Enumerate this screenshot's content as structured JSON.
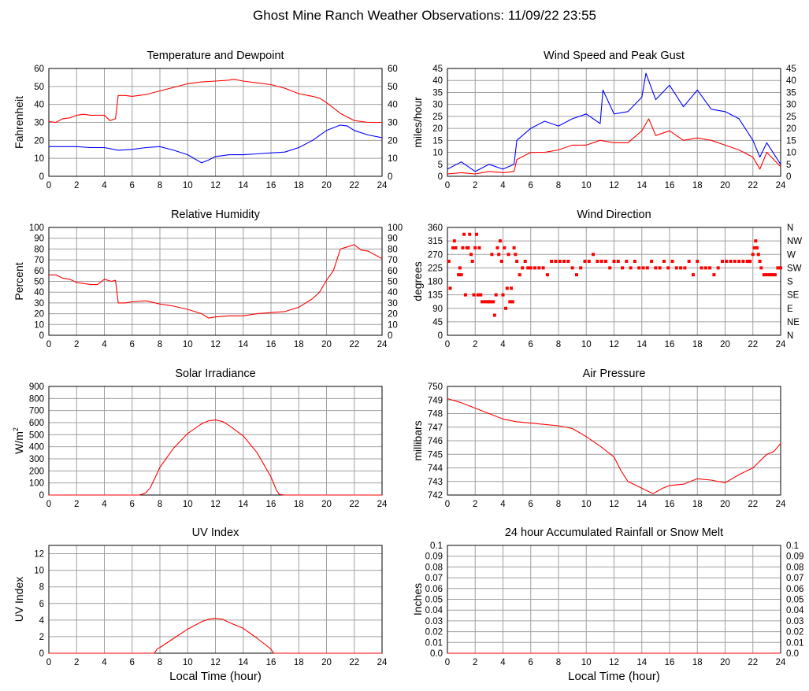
{
  "page_title": "Ghost Mine Ranch Weather Observations: 11/09/22 23:55",
  "colors": {
    "grid": "#a0a0a0",
    "series_red": "#ff0000",
    "series_blue": "#0000ff",
    "axis": "#000000"
  },
  "chart_data": [
    {
      "id": "temperature",
      "type": "line",
      "title": "Temperature and Dewpoint",
      "ylabel": "Fahrenheit",
      "xlabel": "",
      "xlim": [
        0,
        24
      ],
      "ylim": [
        0,
        60
      ],
      "yticks": [
        0,
        10,
        20,
        30,
        40,
        50,
        60
      ],
      "right_axis": true,
      "series": [
        {
          "name": "Temperature",
          "color": "#ff0000",
          "x": [
            0,
            0.5,
            1,
            1.5,
            2,
            2.5,
            3,
            3.5,
            4,
            4.4,
            4.8,
            5.0,
            5.5,
            6,
            7,
            8,
            9,
            10,
            11,
            12,
            13,
            13.3,
            14,
            15,
            16,
            17,
            18,
            19,
            19.5,
            20,
            20.5,
            21,
            22,
            23,
            24
          ],
          "y": [
            30.5,
            30,
            32,
            32.5,
            34,
            34.5,
            34,
            34,
            34,
            31,
            32,
            45,
            45,
            44.5,
            45.5,
            47.5,
            49.5,
            51.5,
            52.5,
            53,
            53.5,
            54,
            53,
            52,
            51,
            49,
            46,
            44.5,
            43.5,
            41,
            38,
            35,
            31,
            30,
            30
          ]
        },
        {
          "name": "Dewpoint",
          "color": "#0000ff",
          "x": [
            0,
            1,
            2,
            3,
            4,
            5,
            6,
            7,
            8,
            9,
            10,
            11,
            11.5,
            12,
            13,
            14,
            15,
            16,
            17,
            18,
            19,
            20,
            21,
            21.5,
            22,
            23,
            24
          ],
          "y": [
            16.5,
            16.5,
            16.5,
            16,
            16,
            14.5,
            15,
            16,
            16.5,
            14.5,
            12,
            7.5,
            9,
            11,
            12,
            12,
            12.5,
            13,
            13.5,
            16,
            20,
            25.5,
            28.5,
            28,
            25.5,
            23,
            21.5
          ]
        }
      ]
    },
    {
      "id": "wind_speed",
      "type": "line",
      "title": "Wind Speed and Peak Gust",
      "ylabel": "miles/hour",
      "xlabel": "",
      "xlim": [
        0,
        24
      ],
      "ylim": [
        0,
        45
      ],
      "yticks": [
        0,
        5,
        10,
        15,
        20,
        25,
        30,
        35,
        40,
        45
      ],
      "right_axis": true,
      "series": [
        {
          "name": "Peak Gust",
          "color": "#0000ff",
          "x": [
            0,
            1,
            2,
            3,
            4,
            4.8,
            5,
            6,
            7,
            8,
            9,
            10,
            11,
            11.2,
            12,
            13,
            14,
            14.3,
            15,
            16,
            17,
            18,
            19,
            20,
            21,
            22,
            22.5,
            23,
            24
          ],
          "y": [
            3,
            6,
            2,
            5,
            3,
            5,
            15,
            20,
            23,
            21,
            24,
            26,
            22,
            36,
            26,
            27,
            33,
            43,
            32,
            38,
            29,
            36,
            28,
            27,
            24,
            15,
            8,
            14,
            5
          ]
        },
        {
          "name": "Wind Speed",
          "color": "#ff0000",
          "x": [
            0,
            1,
            2,
            3,
            4,
            4.8,
            5,
            6,
            7,
            8,
            9,
            10,
            11,
            12,
            13,
            14,
            14.5,
            15,
            16,
            17,
            18,
            19,
            20,
            21,
            22,
            22.5,
            23,
            24
          ],
          "y": [
            1,
            1.5,
            1,
            2,
            1.5,
            2,
            7,
            10,
            10,
            11,
            13,
            13,
            15,
            14,
            14,
            19,
            24,
            17,
            19,
            15,
            16,
            15,
            13,
            11,
            8,
            3,
            10,
            4
          ]
        }
      ]
    },
    {
      "id": "humidity",
      "type": "line",
      "title": "Relative Humidity",
      "ylabel": "Percent",
      "xlabel": "",
      "xlim": [
        0,
        24
      ],
      "ylim": [
        0,
        100
      ],
      "yticks": [
        0,
        10,
        20,
        30,
        40,
        50,
        60,
        70,
        80,
        90,
        100
      ],
      "right_axis": true,
      "series": [
        {
          "name": "Relative Humidity",
          "color": "#ff0000",
          "x": [
            0,
            0.5,
            1,
            1.5,
            2,
            2.5,
            3,
            3.5,
            4,
            4.5,
            4.8,
            5,
            5.5,
            6,
            7,
            8,
            9,
            10,
            11,
            11.5,
            12,
            13,
            14,
            15,
            16,
            17,
            18,
            19,
            19.5,
            20,
            20.5,
            21,
            21.5,
            22,
            22.5,
            23,
            24
          ],
          "y": [
            56,
            56,
            53,
            52,
            49,
            48,
            47,
            47,
            52,
            50,
            51,
            30,
            30,
            31,
            32,
            29,
            27,
            24,
            20,
            16,
            17,
            18,
            18,
            20,
            21,
            22,
            26,
            34,
            40,
            51,
            60,
            80,
            82,
            84,
            79,
            78,
            71
          ]
        }
      ]
    },
    {
      "id": "wind_direction",
      "type": "scatter",
      "title": "Wind Direction",
      "ylabel": "degrees",
      "xlabel": "",
      "xlim": [
        0,
        24
      ],
      "ylim": [
        0,
        360
      ],
      "yticks": [
        0,
        45,
        90,
        135,
        180,
        225,
        270,
        315,
        360
      ],
      "right_labels": [
        "N",
        "NE",
        "E",
        "SE",
        "S",
        "SW",
        "W",
        "NW",
        "N"
      ],
      "series": [
        {
          "name": "Wind Direction",
          "color": "#ff0000",
          "x": [
            0.1,
            0.2,
            0.4,
            0.5,
            0.6,
            0.8,
            0.9,
            1.0,
            1.1,
            1.2,
            1.3,
            1.4,
            1.5,
            1.6,
            1.7,
            1.8,
            1.9,
            2.0,
            2.1,
            2.2,
            2.3,
            2.4,
            2.5,
            2.7,
            2.9,
            3.0,
            3.1,
            3.2,
            3.3,
            3.4,
            3.5,
            3.6,
            3.7,
            3.8,
            3.9,
            4.0,
            4.1,
            4.2,
            4.3,
            4.4,
            4.5,
            4.6,
            4.7,
            4.8,
            4.9,
            5.0,
            5.2,
            5.4,
            5.6,
            5.8,
            6.0,
            6.3,
            6.6,
            6.9,
            7.2,
            7.5,
            7.8,
            8.1,
            8.4,
            8.7,
            9.0,
            9.3,
            9.6,
            9.9,
            10.2,
            10.5,
            10.8,
            11.1,
            11.4,
            11.7,
            12.0,
            12.3,
            12.6,
            12.9,
            13.2,
            13.5,
            13.8,
            14.1,
            14.4,
            14.7,
            15.0,
            15.3,
            15.6,
            15.9,
            16.2,
            16.5,
            16.8,
            17.1,
            17.4,
            17.7,
            18.0,
            18.3,
            18.6,
            18.9,
            19.2,
            19.5,
            19.8,
            20.1,
            20.4,
            20.7,
            21.0,
            21.3,
            21.6,
            21.8,
            22.0,
            22.1,
            22.2,
            22.3,
            22.4,
            22.5,
            22.6,
            22.8,
            23.0,
            23.2,
            23.4,
            23.6,
            23.8,
            24.0
          ],
          "y": [
            247,
            157,
            292,
            315,
            292,
            202,
            225,
            202,
            292,
            337,
            135,
            292,
            292,
            337,
            270,
            247,
            135,
            292,
            337,
            135,
            292,
            135,
            112,
            112,
            112,
            112,
            112,
            270,
            112,
            67,
            135,
            292,
            270,
            315,
            247,
            135,
            292,
            90,
            157,
            270,
            112,
            157,
            112,
            292,
            270,
            247,
            202,
            225,
            247,
            225,
            225,
            225,
            225,
            225,
            202,
            247,
            247,
            247,
            247,
            247,
            225,
            202,
            225,
            247,
            247,
            270,
            247,
            247,
            247,
            225,
            247,
            247,
            225,
            247,
            225,
            247,
            225,
            225,
            225,
            247,
            225,
            225,
            247,
            225,
            247,
            225,
            225,
            225,
            247,
            202,
            247,
            225,
            225,
            225,
            202,
            225,
            247,
            247,
            247,
            247,
            247,
            247,
            247,
            247,
            270,
            292,
            315,
            292,
            270,
            247,
            225,
            202,
            202,
            202,
            202,
            202,
            225,
            225
          ]
        }
      ]
    },
    {
      "id": "solar",
      "type": "line",
      "title": "Solar Irradiance",
      "ylabel": "W/m",
      "ylabel_sup": "2",
      "xlabel": "",
      "xlim": [
        0,
        24
      ],
      "ylim": [
        0,
        900
      ],
      "yticks": [
        0,
        100,
        200,
        300,
        400,
        500,
        600,
        700,
        800,
        900
      ],
      "right_axis": false,
      "series": [
        {
          "name": "Solar Irradiance",
          "color": "#ff0000",
          "x": [
            0,
            6.5,
            6.8,
            7.0,
            7.3,
            7.6,
            8,
            9,
            10,
            11,
            11.5,
            12,
            12.5,
            13,
            14,
            15,
            16,
            16.4,
            16.6,
            17,
            24
          ],
          "y": [
            0,
            0,
            10,
            20,
            60,
            130,
            230,
            390,
            510,
            590,
            615,
            622,
            610,
            575,
            490,
            350,
            150,
            40,
            5,
            0,
            0
          ]
        }
      ]
    },
    {
      "id": "pressure",
      "type": "line",
      "title": "Air Pressure",
      "ylabel": "millibars",
      "xlabel": "",
      "xlim": [
        0,
        24
      ],
      "ylim": [
        742,
        750
      ],
      "yticks": [
        742,
        743,
        744,
        745,
        746,
        747,
        748,
        749,
        750
      ],
      "right_axis": false,
      "series": [
        {
          "name": "Air Pressure",
          "color": "#ff0000",
          "x": [
            0,
            1,
            2,
            3,
            4,
            5,
            6,
            7,
            8,
            9,
            9.5,
            10,
            11,
            12,
            12.5,
            13,
            14,
            14.8,
            15.5,
            16,
            17,
            18,
            19,
            20,
            20.5,
            21,
            22,
            23,
            23.5,
            24
          ],
          "y": [
            749.1,
            748.8,
            748.4,
            748.0,
            747.6,
            747.4,
            747.3,
            747.2,
            747.1,
            746.9,
            746.6,
            746.3,
            745.6,
            744.8,
            743.8,
            743.0,
            742.5,
            742.1,
            742.5,
            742.7,
            742.8,
            743.2,
            743.1,
            742.9,
            743.2,
            743.5,
            744.0,
            745.0,
            745.2,
            745.8
          ]
        }
      ]
    },
    {
      "id": "uv",
      "type": "line",
      "title": "UV Index",
      "ylabel": "UV Index",
      "xlabel": "Local Time (hour)",
      "xlim": [
        0,
        24
      ],
      "ylim": [
        0,
        13
      ],
      "yticks": [
        0,
        2,
        4,
        6,
        8,
        10,
        12
      ],
      "right_axis": false,
      "series": [
        {
          "name": "UV Index",
          "color": "#ff0000",
          "x": [
            0,
            7.6,
            7.8,
            8.2,
            9,
            10,
            11,
            11.5,
            12,
            12.5,
            13,
            14,
            15,
            16,
            16.2,
            24
          ],
          "y": [
            0,
            0,
            0.5,
            0.9,
            1.8,
            2.9,
            3.8,
            4.1,
            4.2,
            4.1,
            3.7,
            3.0,
            1.8,
            0.5,
            0,
            0
          ]
        }
      ]
    },
    {
      "id": "rainfall",
      "type": "line",
      "title": "24 hour Accumulated Rainfall or Snow Melt",
      "ylabel": "Inches",
      "xlabel": "Local Time (hour)",
      "xlim": [
        0,
        24
      ],
      "ylim": [
        0,
        0.1
      ],
      "yticks": [
        0,
        0.01,
        0.02,
        0.03,
        0.04,
        0.05,
        0.06,
        0.07,
        0.08,
        0.09,
        0.1
      ],
      "ytick_labels": [
        "0.0",
        "0.01",
        "0.02",
        "0.03",
        "0.04",
        "0.05",
        "0.06",
        "0.07",
        "0.08",
        "0.09",
        "0.1"
      ],
      "right_axis": true,
      "series": [
        {
          "name": "Rainfall",
          "color": "#ff0000",
          "x": [
            0,
            24
          ],
          "y": [
            0,
            0
          ]
        }
      ]
    }
  ]
}
